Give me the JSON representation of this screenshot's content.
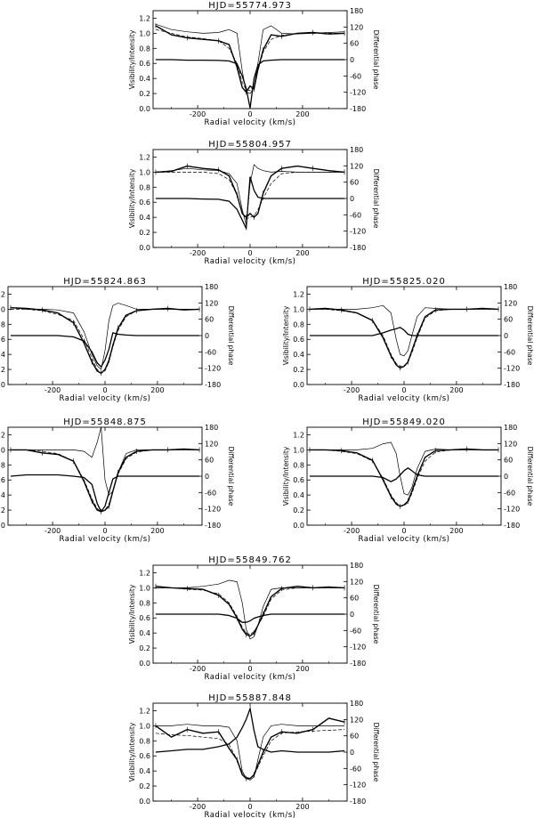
{
  "figure": {
    "xlabel": "Radial velocity (km/s)",
    "ylabel_left": "Visibility/Intensity",
    "ylabel_right": "Differential phase",
    "x_ticks": [
      "-200",
      "0",
      "200"
    ],
    "y_left_ticks": [
      "0.0",
      "0.2",
      "0.4",
      "0.6",
      "0.8",
      "1.0",
      "1.2"
    ],
    "y_right_ticks": [
      "-180",
      "-120",
      "-60",
      "0",
      "60",
      "120",
      "180"
    ]
  },
  "chart_data": [
    {
      "type": "line",
      "title": "HJD=55774.973",
      "xlim": [
        -370,
        370
      ],
      "ylim": [
        0,
        1.3
      ],
      "y2lim": [
        -180,
        180
      ],
      "x": [
        -360,
        -300,
        -240,
        -180,
        -120,
        -80,
        -50,
        -30,
        -15,
        0,
        15,
        30,
        50,
        80,
        120,
        180,
        240,
        300,
        360
      ],
      "intensity": [
        1.12,
        1.05,
        1.02,
        1.0,
        1.01,
        1.05,
        1.0,
        0.5,
        0.22,
        0.2,
        0.28,
        0.6,
        1.05,
        1.1,
        1.0,
        0.99,
        1.0,
        1.01,
        1.02
      ],
      "visibility_model": [
        1.05,
        1.0,
        0.95,
        0.93,
        0.9,
        0.8,
        0.6,
        0.35,
        0.25,
        0.24,
        0.3,
        0.5,
        0.75,
        0.92,
        0.97,
        1.0,
        1.0,
        1.0,
        1.0
      ],
      "visibility": [
        1.1,
        0.98,
        0.94,
        0.92,
        0.9,
        0.85,
        0.55,
        0.28,
        0.22,
        0.3,
        0.26,
        0.52,
        0.78,
        0.98,
        0.96,
        1.0,
        1.01,
        0.99,
        1.0
      ],
      "phase": [
        0,
        0,
        -2,
        -2,
        -3,
        -5,
        -15,
        -60,
        -105,
        -178,
        -70,
        -20,
        -5,
        -2,
        0,
        0,
        0,
        0,
        0
      ]
    },
    {
      "type": "line",
      "title": "HJD=55804.957",
      "xlim": [
        -370,
        370
      ],
      "ylim": [
        0,
        1.3
      ],
      "y2lim": [
        -180,
        180
      ],
      "x": [
        -360,
        -300,
        -240,
        -180,
        -120,
        -80,
        -50,
        -30,
        -15,
        0,
        15,
        30,
        50,
        80,
        120,
        180,
        240,
        300,
        360
      ],
      "intensity": [
        1.0,
        1.02,
        1.05,
        1.03,
        1.02,
        0.98,
        0.85,
        0.5,
        0.3,
        0.85,
        1.1,
        1.05,
        1.02,
        1.0,
        1.01,
        1.0,
        1.0,
        1.0,
        1.0
      ],
      "visibility_model": [
        1.0,
        1.0,
        1.0,
        1.0,
        0.98,
        0.9,
        0.7,
        0.45,
        0.38,
        0.4,
        0.42,
        0.5,
        0.65,
        0.85,
        0.98,
        1.0,
        1.0,
        1.0,
        1.0
      ],
      "visibility": [
        1.0,
        1.01,
        1.08,
        1.05,
        1.03,
        0.95,
        0.7,
        0.45,
        0.4,
        0.45,
        0.4,
        0.45,
        0.72,
        0.95,
        1.05,
        1.08,
        1.05,
        1.02,
        1.0
      ],
      "phase": [
        0,
        0,
        0,
        -2,
        -3,
        -10,
        -40,
        -80,
        -110,
        80,
        30,
        5,
        0,
        0,
        0,
        0,
        0,
        0,
        0
      ]
    },
    {
      "type": "line",
      "title": "HJD=55824.863",
      "xlim": [
        -370,
        370
      ],
      "ylim": [
        0,
        1.3
      ],
      "y2lim": [
        -180,
        180
      ],
      "x": [
        -360,
        -300,
        -240,
        -180,
        -120,
        -80,
        -50,
        -30,
        -15,
        0,
        15,
        30,
        50,
        80,
        120,
        180,
        240,
        300,
        360
      ],
      "intensity": [
        1.02,
        1.0,
        1.0,
        0.99,
        0.95,
        0.7,
        0.4,
        0.25,
        0.2,
        0.45,
        0.85,
        1.05,
        1.08,
        1.05,
        1.0,
        1.0,
        1.0,
        1.0,
        1.0
      ],
      "visibility_model": [
        1.0,
        1.0,
        0.98,
        0.93,
        0.85,
        0.6,
        0.35,
        0.2,
        0.15,
        0.18,
        0.3,
        0.5,
        0.72,
        0.9,
        0.98,
        1.0,
        1.0,
        1.0,
        1.0
      ],
      "visibility": [
        1.02,
        1.01,
        0.99,
        0.95,
        0.82,
        0.55,
        0.3,
        0.18,
        0.15,
        0.2,
        0.32,
        0.52,
        0.75,
        0.92,
        0.98,
        1.0,
        1.01,
        0.99,
        1.0
      ],
      "phase": [
        0,
        0,
        0,
        0,
        -5,
        -20,
        -60,
        -100,
        -115,
        -90,
        -50,
        10,
        5,
        2,
        0,
        0,
        0,
        0,
        0
      ]
    },
    {
      "type": "line",
      "title": "HJD=55825.020",
      "xlim": [
        -370,
        370
      ],
      "ylim": [
        0,
        1.3
      ],
      "y2lim": [
        -180,
        180
      ],
      "x": [
        -360,
        -300,
        -240,
        -180,
        -120,
        -80,
        -50,
        -30,
        -15,
        0,
        15,
        30,
        50,
        80,
        120,
        180,
        240,
        300,
        360
      ],
      "intensity": [
        1.0,
        1.0,
        1.0,
        1.0,
        1.02,
        1.05,
        0.95,
        0.6,
        0.4,
        0.38,
        0.45,
        0.65,
        0.9,
        1.02,
        1.01,
        1.0,
        1.0,
        1.0,
        1.0
      ],
      "visibility_model": [
        1.0,
        1.0,
        0.98,
        0.95,
        0.85,
        0.65,
        0.4,
        0.28,
        0.24,
        0.25,
        0.3,
        0.42,
        0.62,
        0.88,
        0.98,
        1.0,
        1.0,
        1.0,
        1.0
      ],
      "visibility": [
        1.0,
        1.01,
        0.99,
        0.95,
        0.85,
        0.62,
        0.38,
        0.26,
        0.22,
        0.24,
        0.3,
        0.45,
        0.65,
        0.9,
        0.99,
        1.0,
        1.0,
        1.01,
        1.0
      ],
      "phase": [
        0,
        0,
        0,
        0,
        0,
        10,
        20,
        25,
        30,
        20,
        5,
        0,
        0,
        0,
        0,
        0,
        0,
        0,
        0
      ]
    },
    {
      "type": "line",
      "title": "HJD=55848.875",
      "xlim": [
        -370,
        370
      ],
      "ylim": [
        0,
        1.3
      ],
      "y2lim": [
        -180,
        180
      ],
      "x": [
        -360,
        -300,
        -240,
        -180,
        -120,
        -80,
        -50,
        -30,
        -15,
        0,
        15,
        30,
        50,
        80,
        120,
        180,
        240,
        300,
        360
      ],
      "intensity": [
        1.0,
        1.0,
        1.0,
        1.0,
        1.0,
        0.98,
        0.9,
        1.1,
        1.3,
        0.6,
        0.4,
        0.45,
        0.7,
        0.95,
        1.0,
        1.0,
        1.0,
        1.0,
        1.0
      ],
      "visibility_model": [
        1.0,
        1.0,
        0.98,
        0.95,
        0.85,
        0.6,
        0.35,
        0.22,
        0.18,
        0.2,
        0.28,
        0.45,
        0.68,
        0.88,
        0.97,
        1.0,
        1.0,
        1.0,
        1.0
      ],
      "visibility": [
        1.0,
        1.0,
        0.96,
        0.94,
        0.85,
        0.58,
        0.32,
        0.2,
        0.18,
        0.2,
        0.25,
        0.45,
        0.7,
        0.9,
        0.98,
        1.0,
        1.0,
        1.01,
        1.0
      ],
      "phase": [
        0,
        5,
        5,
        5,
        0,
        -5,
        -30,
        -100,
        -130,
        -110,
        -60,
        -10,
        0,
        0,
        0,
        0,
        0,
        0,
        0
      ]
    },
    {
      "type": "line",
      "title": "HJD=55849.020",
      "xlim": [
        -370,
        370
      ],
      "ylim": [
        0,
        1.3
      ],
      "y2lim": [
        -180,
        180
      ],
      "x": [
        -360,
        -300,
        -240,
        -180,
        -120,
        -80,
        -50,
        -30,
        -15,
        0,
        15,
        30,
        50,
        80,
        120,
        180,
        240,
        300,
        360
      ],
      "intensity": [
        1.0,
        1.0,
        1.0,
        1.0,
        1.02,
        1.08,
        1.1,
        0.95,
        0.65,
        0.42,
        0.4,
        0.5,
        0.75,
        0.98,
        1.01,
        1.0,
        1.0,
        1.0,
        1.0
      ],
      "visibility_model": [
        1.0,
        1.0,
        0.98,
        0.95,
        0.85,
        0.62,
        0.4,
        0.3,
        0.25,
        0.26,
        0.3,
        0.42,
        0.62,
        0.85,
        0.97,
        1.0,
        1.0,
        1.0,
        1.0
      ],
      "visibility": [
        1.0,
        1.0,
        0.99,
        0.96,
        0.86,
        0.6,
        0.38,
        0.28,
        0.25,
        0.27,
        0.32,
        0.45,
        0.65,
        0.9,
        0.99,
        1.0,
        1.01,
        1.0,
        1.0
      ],
      "phase": [
        0,
        0,
        0,
        0,
        0,
        -5,
        -20,
        -10,
        5,
        20,
        30,
        20,
        5,
        0,
        0,
        0,
        0,
        0,
        0
      ]
    },
    {
      "type": "line",
      "title": "HJD=55849.762",
      "xlim": [
        -370,
        370
      ],
      "ylim": [
        0,
        1.3
      ],
      "y2lim": [
        -180,
        180
      ],
      "x": [
        -360,
        -300,
        -240,
        -180,
        -120,
        -80,
        -50,
        -30,
        -15,
        0,
        15,
        30,
        50,
        80,
        120,
        180,
        240,
        300,
        360
      ],
      "intensity": [
        1.0,
        1.0,
        1.0,
        1.02,
        1.05,
        1.1,
        1.08,
        0.8,
        0.45,
        0.32,
        0.35,
        0.5,
        0.75,
        0.98,
        1.0,
        1.0,
        1.0,
        1.0,
        1.0
      ],
      "visibility_model": [
        1.0,
        1.0,
        0.98,
        0.97,
        0.92,
        0.8,
        0.62,
        0.48,
        0.4,
        0.38,
        0.42,
        0.5,
        0.62,
        0.85,
        0.97,
        1.0,
        1.0,
        1.0,
        1.0
      ],
      "visibility": [
        1.02,
        1.0,
        0.99,
        0.98,
        0.9,
        0.78,
        0.6,
        0.45,
        0.38,
        0.36,
        0.4,
        0.5,
        0.65,
        0.88,
        0.99,
        1.02,
        1.0,
        1.01,
        1.0
      ],
      "phase": [
        0,
        0,
        0,
        0,
        0,
        -5,
        -15,
        -30,
        -30,
        -25,
        -15,
        -10,
        -5,
        0,
        0,
        0,
        0,
        0,
        0
      ]
    },
    {
      "type": "line",
      "title": "HJD=55887.848",
      "xlim": [
        -370,
        370
      ],
      "ylim": [
        0,
        1.3
      ],
      "y2lim": [
        -180,
        180
      ],
      "x": [
        -360,
        -300,
        -240,
        -180,
        -120,
        -80,
        -50,
        -30,
        -15,
        0,
        15,
        30,
        50,
        80,
        120,
        180,
        240,
        300,
        360
      ],
      "intensity": [
        1.0,
        1.0,
        1.02,
        1.0,
        1.0,
        0.98,
        0.8,
        0.4,
        0.3,
        0.28,
        0.32,
        0.55,
        0.85,
        1.0,
        1.02,
        1.0,
        1.0,
        1.0,
        1.0
      ],
      "visibility_model": [
        0.9,
        0.88,
        0.87,
        0.85,
        0.83,
        0.75,
        0.55,
        0.38,
        0.32,
        0.3,
        0.34,
        0.45,
        0.6,
        0.8,
        0.9,
        0.92,
        0.93,
        0.94,
        0.95
      ],
      "visibility": [
        1.0,
        0.85,
        0.95,
        0.9,
        0.92,
        0.7,
        0.55,
        0.35,
        0.3,
        0.3,
        0.35,
        0.48,
        0.65,
        0.85,
        0.92,
        0.9,
        0.95,
        1.1,
        1.05
      ],
      "phase": [
        0,
        5,
        10,
        10,
        20,
        30,
        55,
        90,
        120,
        160,
        80,
        20,
        10,
        0,
        5,
        0,
        0,
        0,
        5
      ]
    }
  ]
}
